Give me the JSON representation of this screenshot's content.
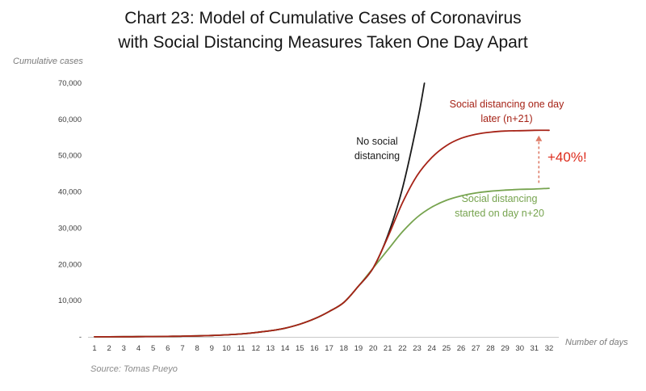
{
  "title": {
    "line1": "Chart 23: Model of Cumulative Cases of Coronavirus",
    "line2": "with Social Distancing Measures Taken One Day Apart"
  },
  "source": "Source: Tomas Pueyo",
  "chart_data": {
    "type": "line",
    "title": "Chart 23: Model of Cumulative Cases of Coronavirus with Social Distancing Measures Taken One Day Apart",
    "ylabel": "Cumulative cases",
    "xlabel": "Number of days",
    "xlim": [
      1,
      32
    ],
    "ylim": [
      0,
      70000
    ],
    "grid": false,
    "legend_position": "inline-annotations",
    "x_ticks": [
      1,
      2,
      3,
      4,
      5,
      6,
      7,
      8,
      9,
      10,
      11,
      12,
      13,
      14,
      15,
      16,
      17,
      18,
      19,
      20,
      21,
      22,
      23,
      24,
      25,
      26,
      27,
      28,
      29,
      30,
      31,
      32
    ],
    "y_ticks": [
      {
        "value": 0,
        "label": "-"
      },
      {
        "value": 10000,
        "label": "10,000"
      },
      {
        "value": 20000,
        "label": "20,000"
      },
      {
        "value": 30000,
        "label": "30,000"
      },
      {
        "value": 40000,
        "label": "40,000"
      },
      {
        "value": 50000,
        "label": "50,000"
      },
      {
        "value": 60000,
        "label": "60,000"
      },
      {
        "value": 70000,
        "label": "70,000"
      }
    ],
    "series": [
      {
        "name": "No social distancing",
        "color": "#1a1a1a",
        "x": [
          1,
          2,
          3,
          4,
          5,
          6,
          7,
          8,
          9,
          10,
          11,
          12,
          13,
          14,
          15,
          16,
          17,
          18,
          19,
          20,
          21,
          22,
          23,
          23.5
        ],
        "values": [
          20,
          30,
          45,
          60,
          90,
          130,
          190,
          270,
          380,
          550,
          800,
          1200,
          1700,
          2400,
          3500,
          5000,
          7000,
          9500,
          14000,
          19000,
          28000,
          41000,
          59000,
          70000
        ]
      },
      {
        "name": "Social distancing started on day n+20",
        "color": "#76a34e",
        "x": [
          1,
          2,
          3,
          4,
          5,
          6,
          7,
          8,
          9,
          10,
          11,
          12,
          13,
          14,
          15,
          16,
          17,
          18,
          19,
          20,
          21,
          22,
          23,
          24,
          25,
          26,
          27,
          28,
          29,
          30,
          31,
          32
        ],
        "values": [
          20,
          30,
          45,
          60,
          90,
          130,
          190,
          270,
          380,
          550,
          800,
          1200,
          1700,
          2400,
          3500,
          5000,
          7000,
          9500,
          14000,
          19000,
          24000,
          29000,
          33000,
          35800,
          37700,
          38900,
          39700,
          40200,
          40500,
          40700,
          40800,
          41000
        ]
      },
      {
        "name": "Social distancing one day later (n+21)",
        "color": "#a62317",
        "x": [
          1,
          2,
          3,
          4,
          5,
          6,
          7,
          8,
          9,
          10,
          11,
          12,
          13,
          14,
          15,
          16,
          17,
          18,
          19,
          20,
          21,
          22,
          23,
          24,
          25,
          26,
          27,
          28,
          29,
          30,
          31,
          32
        ],
        "values": [
          20,
          30,
          45,
          60,
          90,
          130,
          190,
          270,
          380,
          550,
          800,
          1200,
          1700,
          2400,
          3500,
          5000,
          7000,
          9500,
          14000,
          19000,
          27500,
          37000,
          44500,
          49500,
          52800,
          54800,
          55900,
          56500,
          56800,
          56900,
          57000,
          57000
        ]
      }
    ],
    "annotations": [
      {
        "id": "no-distancing",
        "text": "No social distancing",
        "color": "#1a1a1a"
      },
      {
        "id": "one-day-later",
        "text": "Social distancing one day later (n+21)",
        "color": "#a62317"
      },
      {
        "id": "day-n20",
        "text": "Social distancing started on day n+20",
        "color": "#76a34e"
      },
      {
        "id": "percent-increase",
        "text": "+40%!",
        "color": "#dd2b1c"
      }
    ],
    "arrow": {
      "x": 31.3,
      "from": 42500,
      "to": 54000,
      "color": "#dd7a66"
    }
  }
}
